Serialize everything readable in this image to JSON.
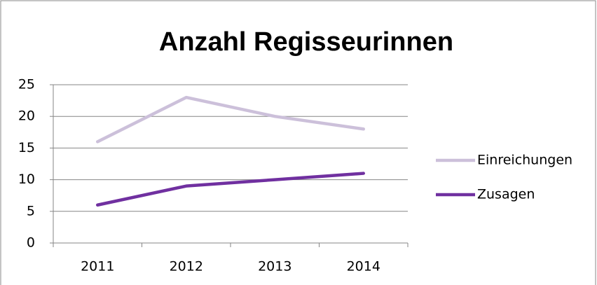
{
  "chart_data": {
    "type": "line",
    "title": "Anzahl Regisseurinnen",
    "categories": [
      "2011",
      "2012",
      "2013",
      "2014"
    ],
    "series": [
      {
        "name": "Einreichungen",
        "color": "#ccc0da",
        "values": [
          16,
          23,
          20,
          18
        ]
      },
      {
        "name": "Zusagen",
        "color": "#7030a0",
        "values": [
          6,
          9,
          10,
          11
        ]
      }
    ],
    "ylim": [
      0,
      25
    ],
    "yticks": [
      0,
      5,
      10,
      15,
      20,
      25
    ],
    "grid": true,
    "legend": "right"
  }
}
